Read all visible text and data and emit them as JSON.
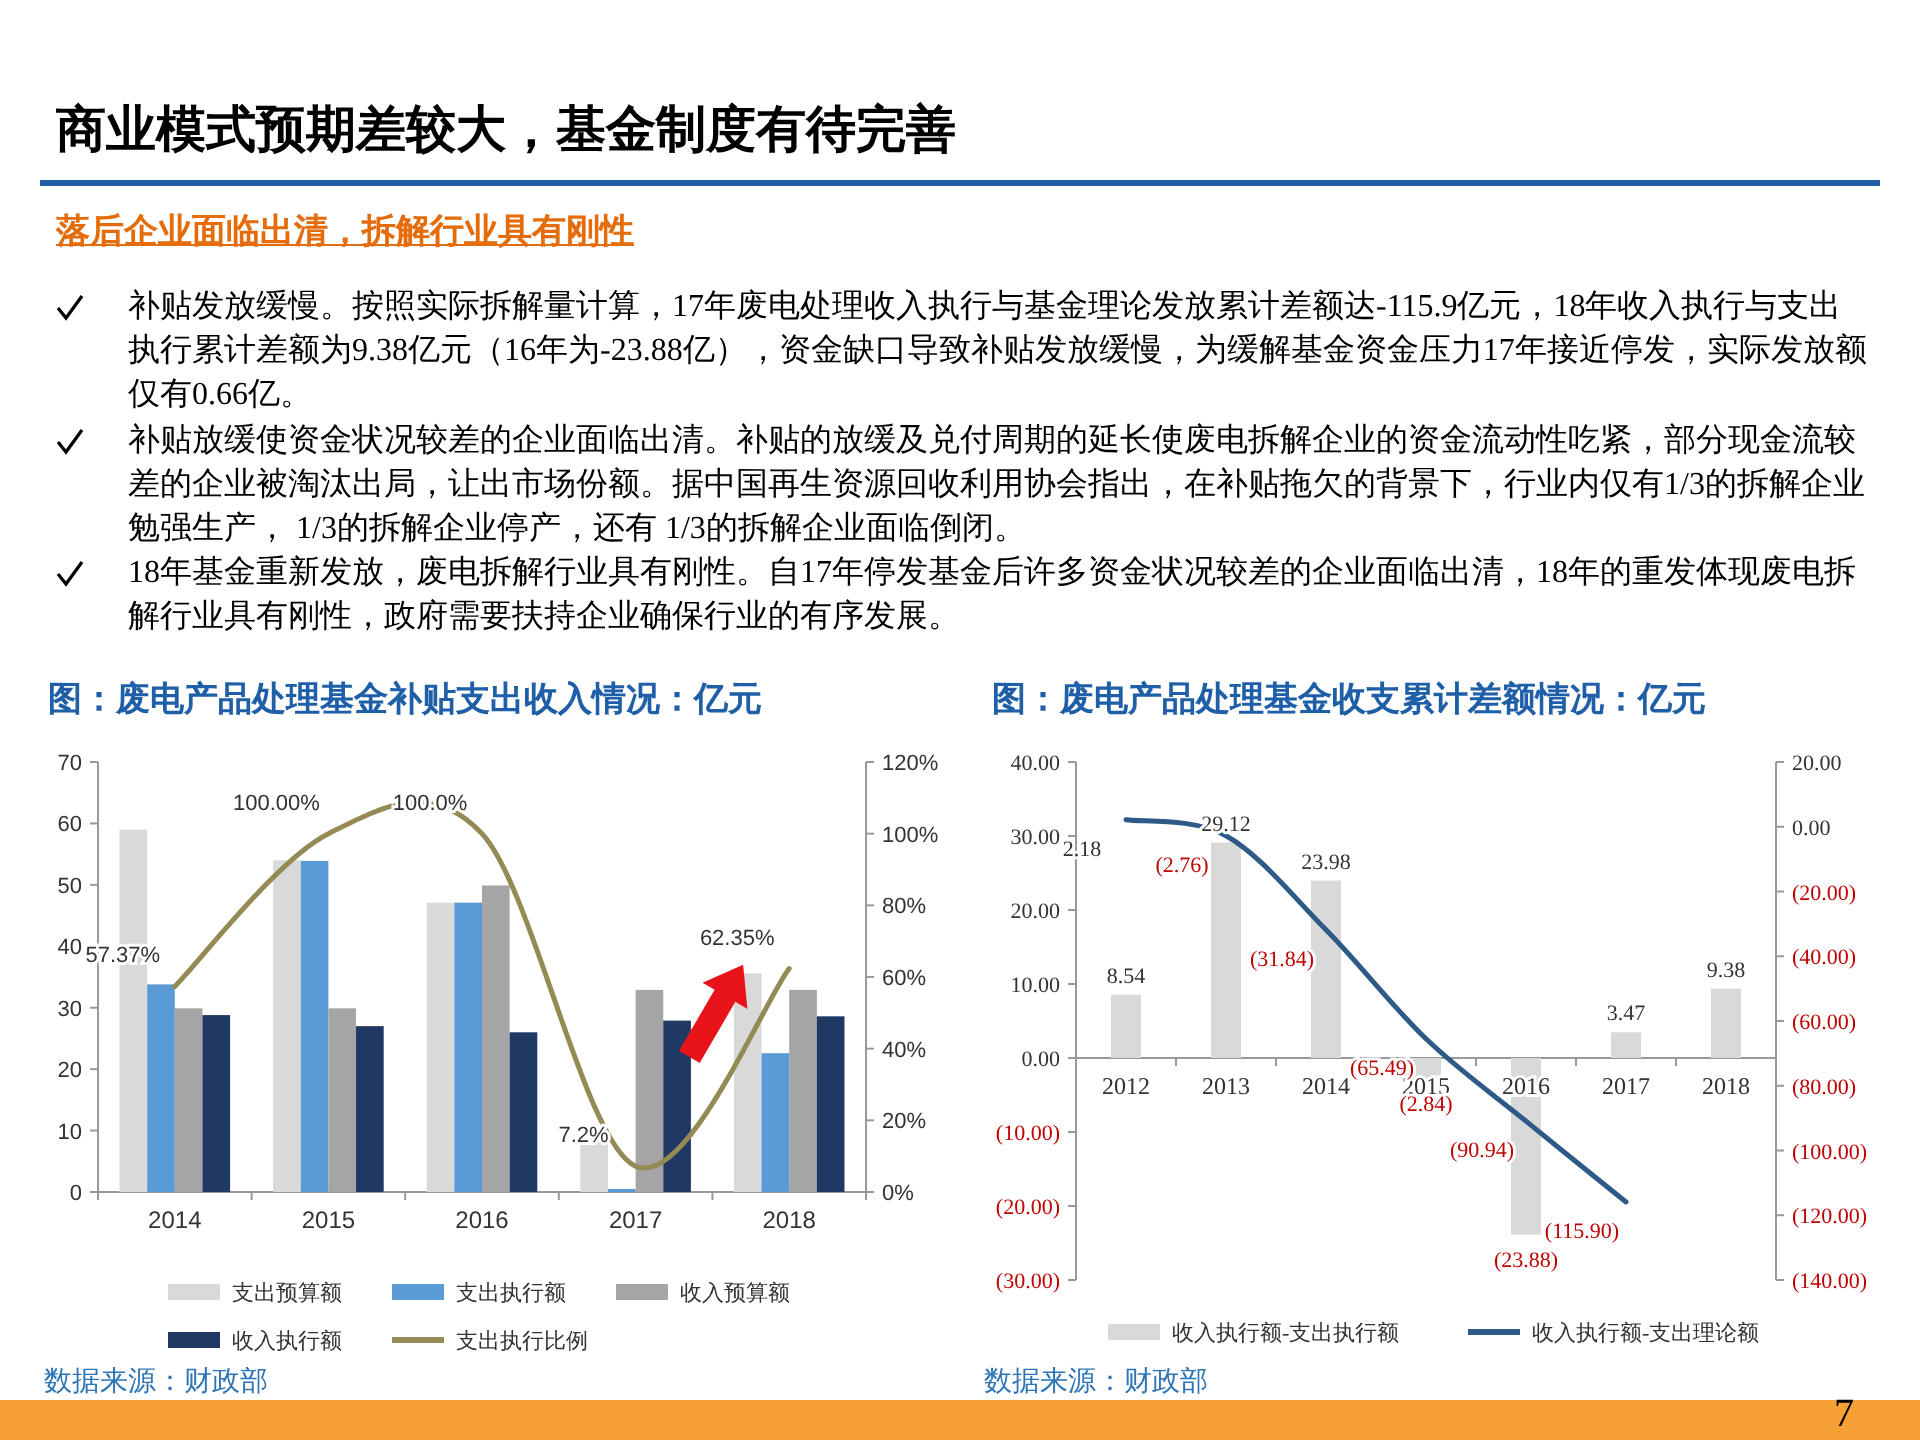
{
  "chart_data": [
    {
      "type": "other",
      "title": "商业模式预期差较大，基金制度有待完善",
      "subtitle": "落后企业面临出清，拆解行业具有刚性",
      "annotations": [
        "补贴发放缓慢。按照实际拆解量计算，17年废电处理收入执行与基金理论发放累计差额达-115.9亿元，18年收入执行与支出执行累计差额为9.38亿元（16年为-23.88亿），资金缺口导致补贴发放缓慢，为缓解基金资金压力17年接近停发，实际发放额仅有0.66亿。",
        "补贴放缓使资金状况较差的企业面临出清。补贴的放缓及兑付周期的延长使废电拆解企业的资金流动性吃紧，部分现金流较差的企业被淘汰出局，让出市场份额。据中国再生资源回收利用协会指出，在补贴拖欠的背景下，行业内仅有1/3的拆解企业勉强生产， 1/3的拆解企业停产，还有 1/3的拆解企业面临倒闭。",
        "18年基金重新发放，废电拆解行业具有刚性。自17年停发基金后许多资金状况较差的企业面临出清，18年的重发体现废电拆解行业具有刚性，政府需要扶持企业确保行业的有序发展。",
        "7"
      ]
    },
    {
      "type": "bar",
      "title": "图：废电产品处理基金补贴支出收入情况：亿元",
      "categories": [
        "2014",
        "2015",
        "2016",
        "2017",
        "2018"
      ],
      "series": [
        {
          "name": "支出预算额",
          "color": "#d9d9d9",
          "values": [
            59.0,
            54.0,
            47.1,
            9.0,
            35.6
          ]
        },
        {
          "name": "支出执行额",
          "color": "#5b9bd5",
          "values": [
            33.8,
            53.9,
            47.1,
            0.5,
            22.6
          ]
        },
        {
          "name": "收入预算额",
          "color": "#a5a5a5",
          "values": [
            29.9,
            29.9,
            49.9,
            32.9,
            32.9
          ]
        },
        {
          "name": "收入执行额",
          "color": "#203864",
          "values": [
            28.8,
            27.0,
            26.0,
            27.9,
            28.6
          ]
        },
        {
          "name": "支出执行比例",
          "color": "#948a54",
          "type": "line",
          "axis": "y2",
          "values": [
            57.37,
            100,
            100,
            7.2,
            62.35
          ],
          "value_labels": [
            "57.37%",
            "100.00%",
            "100.0%",
            "7.2%",
            "62.35%"
          ]
        }
      ],
      "ylim": [
        0,
        70
      ],
      "yticks": [
        0,
        10,
        20,
        30,
        40,
        50,
        60,
        70
      ],
      "y2lim": [
        0,
        120
      ],
      "y2ticks": [
        {
          "value": 0,
          "label": "0%"
        },
        {
          "value": 20,
          "label": "20%"
        },
        {
          "value": 40,
          "label": "40%"
        },
        {
          "value": 60,
          "label": "60%"
        },
        {
          "value": 80,
          "label": "80%"
        },
        {
          "value": 100,
          "label": "100%"
        },
        {
          "value": 120,
          "label": "120%"
        }
      ],
      "legend": "bottom",
      "annotations": [
        "数据来源：财政部"
      ]
    },
    {
      "type": "bar",
      "title": "图：废电产品处理基金收支累计差额情况：亿元",
      "categories": [
        "2012",
        "2013",
        "2014",
        "2015",
        "2016",
        "2017",
        "2018"
      ],
      "series": [
        {
          "name": "收入执行额-支出执行额",
          "color": "#d9d9d9",
          "values": [
            8.54,
            29.12,
            23.98,
            -2.84,
            -23.88,
            3.47,
            9.38
          ],
          "value_labels": [
            "8.54",
            "29.12",
            "23.98",
            "(2.84)",
            "(23.88)",
            "3.47",
            "9.38"
          ]
        },
        {
          "name": "收入执行额-支出理论额",
          "color": "#2e5a88",
          "type": "line",
          "axis": "y2",
          "values": [
            2.18,
            -2.76,
            -31.84,
            -65.49,
            -90.94,
            -115.9,
            null
          ],
          "value_labels": [
            "2.18",
            "(2.76)",
            "(31.84)",
            "(65.49)",
            "(90.94)",
            "(115.90)",
            null
          ]
        }
      ],
      "ylim": [
        -30,
        40
      ],
      "yticks": [
        {
          "value": -30,
          "label": "(30.00)"
        },
        {
          "value": -20,
          "label": "(20.00)"
        },
        {
          "value": -10,
          "label": "(10.00)"
        },
        {
          "value": 0,
          "label": "0.00"
        },
        {
          "value": 10,
          "label": "10.00"
        },
        {
          "value": 20,
          "label": "20.00"
        },
        {
          "value": 30,
          "label": "30.00"
        },
        {
          "value": 40,
          "label": "40.00"
        }
      ],
      "y2lim": [
        -140,
        20
      ],
      "y2ticks": [
        {
          "value": -140,
          "label": "(140.00)"
        },
        {
          "value": -120,
          "label": "(120.00)"
        },
        {
          "value": -100,
          "label": "(100.00)"
        },
        {
          "value": -80,
          "label": "(80.00)"
        },
        {
          "value": -60,
          "label": "(60.00)"
        },
        {
          "value": -40,
          "label": "(40.00)"
        },
        {
          "value": -20,
          "label": "(20.00)"
        },
        {
          "value": 0,
          "label": "0.00"
        },
        {
          "value": 20,
          "label": "20.00"
        }
      ],
      "legend": "bottom",
      "annotations": [
        "数据来源：财政部"
      ]
    }
  ]
}
